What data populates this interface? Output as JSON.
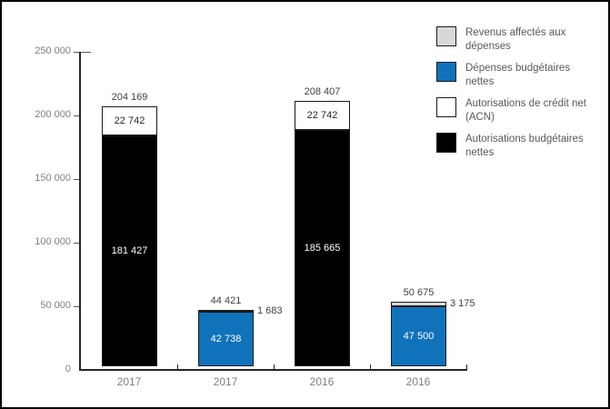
{
  "canvas": {
    "background": "#FFFFFF",
    "border_color": "#000000"
  },
  "chart_data": {
    "type": "bar",
    "stacked": true,
    "title": "",
    "xlabel": "",
    "ylabel": "",
    "grid": false,
    "legend_position": "top-right",
    "y_axis": {
      "min": 0,
      "max": 250000,
      "ticks": [
        0,
        50000,
        100000,
        150000,
        200000,
        250000
      ],
      "tick_labels": [
        "0",
        "50 000",
        "100 000",
        "150 000",
        "200 000",
        "250 000"
      ]
    },
    "x_categories": [
      "2017",
      "2017",
      "2016",
      "2016"
    ],
    "bars": [
      {
        "x_label": "2017",
        "total": 204169,
        "total_label": "204 169",
        "segments": [
          {
            "series": "Autorisations budgétaires nettes",
            "value": 181427,
            "label": "181 427",
            "color": "#000000",
            "label_color": "#FFFFFF"
          },
          {
            "series": "Autorisations de crédit net (ACN)",
            "value": 22742,
            "label": "22 742",
            "color": "#FFFFFF",
            "label_color": "#262626"
          }
        ]
      },
      {
        "x_label": "2017",
        "total": 44421,
        "total_label": "44 421",
        "segments": [
          {
            "series": "Dépenses budgétaires nettes",
            "value": 42738,
            "label": "42 738",
            "color": "#1072BB",
            "label_color": "#FFFFFF"
          },
          {
            "series": "Revenus affectés aux dépenses",
            "value": 1683,
            "label": "1 683",
            "color": "#D8D8D8",
            "label_color": "#404040",
            "label_position": "outside-right"
          }
        ]
      },
      {
        "x_label": "2016",
        "total": 208407,
        "total_label": "208 407",
        "segments": [
          {
            "series": "Autorisations budgétaires nettes",
            "value": 185665,
            "label": "185 665",
            "color": "#000000",
            "label_color": "#FFFFFF"
          },
          {
            "series": "Autorisations de crédit net (ACN)",
            "value": 22742,
            "label": "22 742",
            "color": "#FFFFFF",
            "label_color": "#262626"
          }
        ]
      },
      {
        "x_label": "2016",
        "total": 50675,
        "total_label": "50 675",
        "segments": [
          {
            "series": "Dépenses budgétaires nettes",
            "value": 47500,
            "label": "47 500",
            "color": "#1072BB",
            "label_color": "#FFFFFF"
          },
          {
            "series": "Revenus affectés aux dépenses",
            "value": 3175,
            "label": "3 175",
            "color": "#D8D8D8",
            "label_color": "#404040",
            "label_position": "outside-right"
          }
        ]
      }
    ],
    "legend": [
      {
        "label": "Revenus affectés aux dépenses",
        "color": "#D8D8D8"
      },
      {
        "label": "Dépenses budgétaires nettes",
        "color": "#1072BB"
      },
      {
        "label": "Autorisations de crédit net (ACN)",
        "color": "#FFFFFF"
      },
      {
        "label": "Autorisations budgétaires nettes",
        "color": "#000000"
      }
    ]
  }
}
